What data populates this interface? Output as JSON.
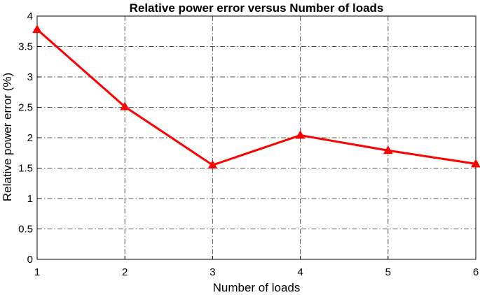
{
  "chart_data": {
    "type": "line",
    "title": "Relative power error versus Number of loads",
    "xlabel": "Number of loads",
    "ylabel": "Relative power error (%)",
    "x": [
      1,
      2,
      3,
      4,
      5,
      6
    ],
    "xlim": [
      1,
      6
    ],
    "ylim": [
      0,
      4
    ],
    "xticks": [
      "1",
      "2",
      "3",
      "4",
      "5",
      "6"
    ],
    "yticks": [
      "0",
      "0.5",
      "1",
      "1.5",
      "2",
      "2.5",
      "3",
      "3.5",
      "4"
    ],
    "grid": true,
    "series": [
      {
        "values": [
          3.78,
          2.51,
          1.55,
          2.04,
          1.79,
          1.57
        ],
        "color": "#ff0000",
        "marker": "triangle"
      }
    ]
  }
}
